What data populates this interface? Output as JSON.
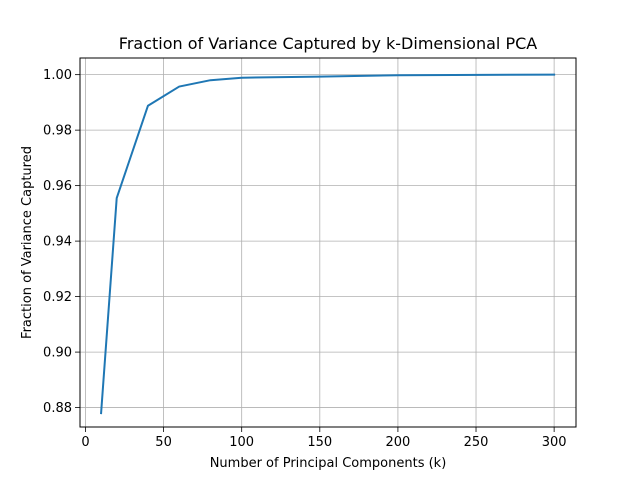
{
  "chart_data": {
    "type": "line",
    "title": "Fraction of Variance Captured by k-Dimensional PCA",
    "xlabel": "Number of Principal Components (k)",
    "ylabel": "Fraction of Variance Captured",
    "xlim": [
      -3.5,
      314
    ],
    "ylim": [
      0.873,
      1.006
    ],
    "xticks": [
      0,
      50,
      100,
      150,
      200,
      250,
      300
    ],
    "xtick_labels": [
      "0",
      "50",
      "100",
      "150",
      "200",
      "250",
      "300"
    ],
    "yticks": [
      0.88,
      0.9,
      0.92,
      0.94,
      0.96,
      0.98,
      1.0
    ],
    "ytick_labels": [
      "0.88",
      "0.90",
      "0.92",
      "0.94",
      "0.96",
      "0.98",
      "1.00"
    ],
    "grid": true,
    "series": [
      {
        "color": "#1f77b4",
        "x": [
          10,
          20,
          40,
          60,
          80,
          100,
          150,
          200,
          300
        ],
        "y": [
          0.878,
          0.9555,
          0.9888,
          0.9957,
          0.998,
          0.9989,
          0.9993,
          0.9998,
          1.0
        ]
      }
    ]
  }
}
